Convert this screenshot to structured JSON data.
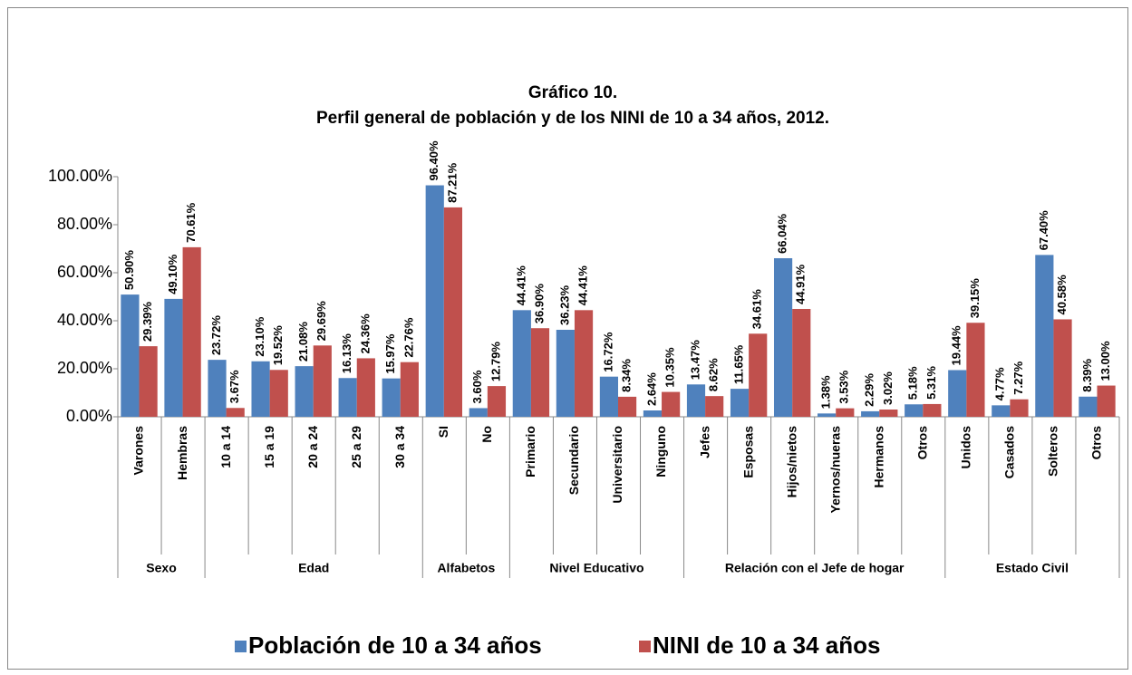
{
  "chart_data": {
    "type": "bar",
    "title": "Gráfico 10.",
    "subtitle": "Perfil general de población y de los NINI de 10 a 34 años, 2012.",
    "groups": [
      {
        "name": "Sexo",
        "categories": [
          "Varones",
          "Hembras"
        ]
      },
      {
        "name": "Edad",
        "categories": [
          "10 a 14",
          "15 a 19",
          "20 a 24",
          "25 a 29",
          "30 a 34"
        ]
      },
      {
        "name": "Alfabetos",
        "categories": [
          "SI",
          "No"
        ]
      },
      {
        "name": "Nivel Educativo",
        "categories": [
          "Primario",
          "Secundario",
          "Universitario",
          "Ninguno"
        ]
      },
      {
        "name": "Relación con el Jefe de hogar",
        "categories": [
          "Jefes",
          "Esposas",
          "Hijos/nietos",
          "Yernos/nueras",
          "Hermanos",
          "Otros"
        ]
      },
      {
        "name": "Estado Civil",
        "categories": [
          "Unidos",
          "Casados",
          "Solteros",
          "Otros"
        ]
      }
    ],
    "series": [
      {
        "name": "Población de 10 a 34 años",
        "color": "#4f81bd",
        "values": [
          50.9,
          49.1,
          23.72,
          23.1,
          21.08,
          16.13,
          15.97,
          96.4,
          3.6,
          44.41,
          36.23,
          16.72,
          2.64,
          13.47,
          11.65,
          66.04,
          1.38,
          2.29,
          5.18,
          19.44,
          4.77,
          67.4,
          8.39
        ],
        "value_labels": [
          "50.90%",
          "49.10%",
          "23.72%",
          "23.10%",
          "21.08%",
          "16.13%",
          "15.97%",
          "96.40%",
          "3.60%",
          "44.41%",
          "36.23%",
          "16.72%",
          "2.64%",
          "13.47%",
          "11.65%",
          "66.04%",
          "1.38%",
          "2.29%",
          "5.18%",
          "19.44%",
          "4.77%",
          "67.40%",
          "8.39%"
        ]
      },
      {
        "name": "NINI de 10 a 34 años",
        "color": "#c0504d",
        "values": [
          29.39,
          70.61,
          3.67,
          19.52,
          29.69,
          24.36,
          22.76,
          87.21,
          12.79,
          36.9,
          44.41,
          8.34,
          10.35,
          8.62,
          34.61,
          44.91,
          3.53,
          3.02,
          5.31,
          39.15,
          7.27,
          40.58,
          13.0
        ],
        "value_labels": [
          "29.39%",
          "70.61%",
          "3.67%",
          "19.52%",
          "29.69%",
          "24.36%",
          "22.76%",
          "87.21%",
          "12.79%",
          "36.90%",
          "44.41%",
          "8.34%",
          "10.35%",
          "8.62%",
          "34.61%",
          "44.91%",
          "3.53%",
          "3.02%",
          "5.31%",
          "39.15%",
          "7.27%",
          "40.58%",
          "13.00%"
        ]
      }
    ],
    "ylim": [
      0,
      100
    ],
    "yticks": [
      {
        "value": 0,
        "label": "0.00%"
      },
      {
        "value": 20,
        "label": "20.00%"
      },
      {
        "value": 40,
        "label": "40.00%"
      },
      {
        "value": 60,
        "label": "60.00%"
      },
      {
        "value": 80,
        "label": "80.00%"
      },
      {
        "value": 100,
        "label": "100.00%"
      }
    ],
    "grid": false,
    "legend": "bottom"
  }
}
